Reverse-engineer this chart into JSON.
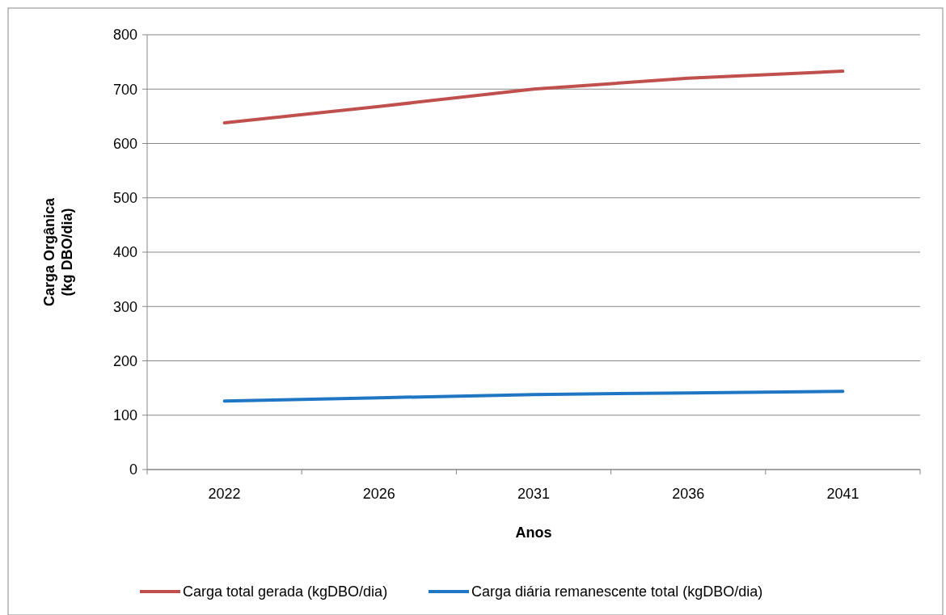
{
  "chart_data": {
    "type": "line",
    "xlabel": "Anos",
    "ylabel": "Carga Orgânica\n(kg DBO/dia)",
    "categories": [
      "2022",
      "2026",
      "2031",
      "2036",
      "2041"
    ],
    "series": [
      {
        "name": "Carga total gerada (kgDBO/dia)",
        "color": "#c0504d",
        "values": [
          638,
          668,
          700,
          720,
          733
        ]
      },
      {
        "name": "Carga diária remanescente total (kgDBO/dia)",
        "color": "#1f77c4",
        "values": [
          126,
          132,
          138,
          141,
          144
        ]
      }
    ],
    "ylim": [
      0,
      800
    ],
    "yticks": [
      0,
      100,
      200,
      300,
      400,
      500,
      600,
      700,
      800
    ],
    "grid": "y",
    "legend": "bottom",
    "marker": "none",
    "line_style": "solid"
  }
}
